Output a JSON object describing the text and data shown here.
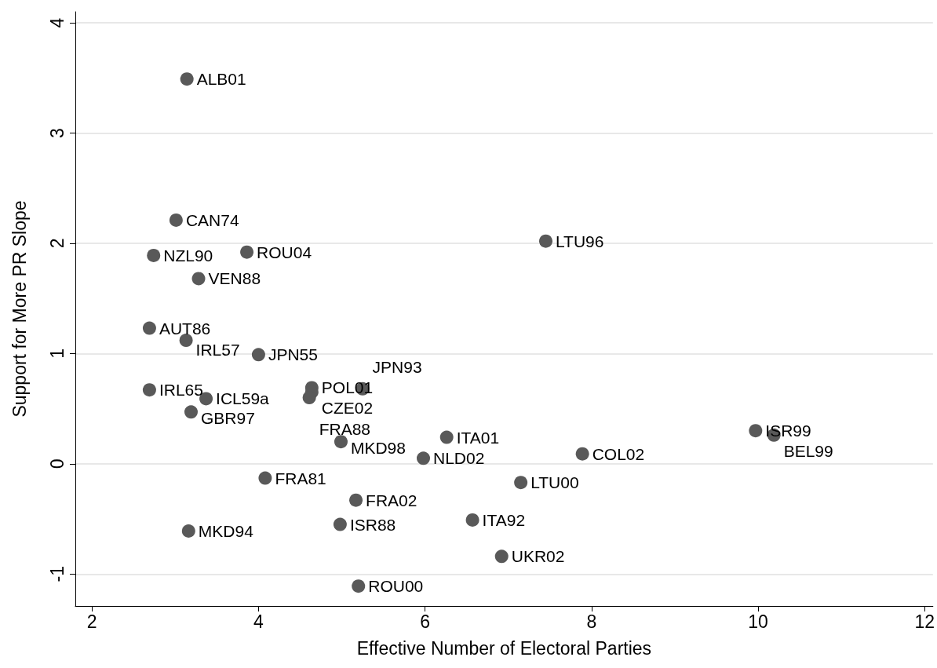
{
  "chart_data": {
    "type": "scatter",
    "xlabel": "Effective Number of Electoral Parties",
    "ylabel": "Support for More PR Slope",
    "x": [
      3.14,
      3.01,
      2.74,
      3.86,
      3.28,
      7.45,
      2.69,
      3.13,
      4.0,
      2.69,
      3.37,
      3.19,
      4.64,
      4.64,
      4.61,
      5.25,
      4.99,
      6.26,
      5.98,
      7.89,
      9.97,
      10.19,
      4.08,
      7.15,
      5.17,
      4.98,
      6.57,
      3.16,
      6.92,
      5.2
    ],
    "values": [
      3.49,
      2.21,
      1.89,
      1.92,
      1.68,
      2.02,
      1.23,
      1.12,
      0.99,
      0.67,
      0.59,
      0.47,
      0.69,
      0.65,
      0.6,
      0.68,
      0.2,
      0.24,
      0.05,
      0.09,
      0.3,
      0.26,
      -0.13,
      -0.17,
      -0.33,
      -0.55,
      -0.51,
      -0.61,
      -0.84,
      -1.11
    ],
    "value_labels": [
      "ALB01",
      "CAN74",
      "NZL90",
      "ROU04",
      "VEN88",
      "LTU96",
      "AUT86",
      "IRL57",
      "JPN55",
      "IRL65",
      "ICL59a",
      "GBR97",
      "POL01",
      "CZE02",
      "FRA88",
      "JPN93",
      "MKD98",
      "ITA01",
      "NLD02",
      "COL02",
      "ISR99",
      "BEL99",
      "FRA81",
      "LTU00",
      "FRA02",
      "ISR88",
      "ITA92",
      "MKD94",
      "UKR02",
      "ROU00"
    ],
    "color": "#595959",
    "marker": "circle",
    "xlim": [
      1.8,
      12.1
    ],
    "xticks": [
      2,
      4,
      6,
      8,
      10,
      12
    ],
    "ylim": [
      -1.29,
      4.1
    ],
    "yticks": [
      -1,
      0,
      1,
      2,
      3,
      4
    ],
    "grid": "y"
  }
}
